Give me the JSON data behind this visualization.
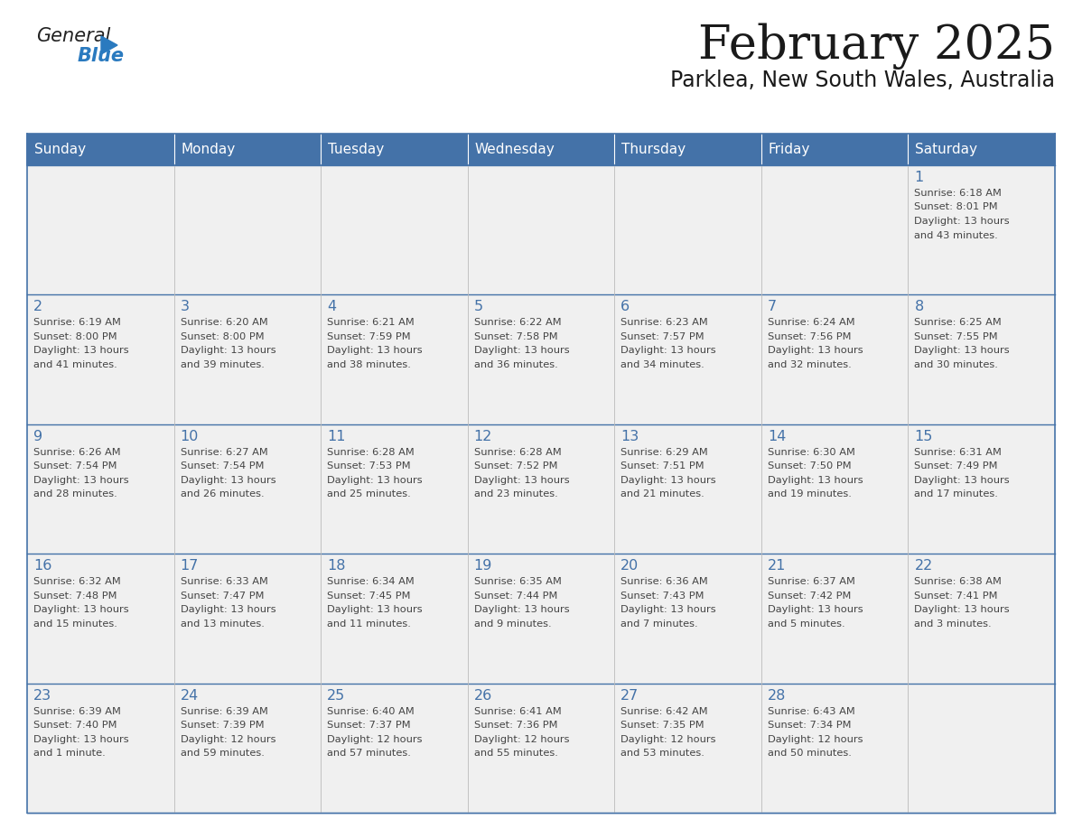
{
  "title": "February 2025",
  "subtitle": "Parklea, New South Wales, Australia",
  "days_of_week": [
    "Sunday",
    "Monday",
    "Tuesday",
    "Wednesday",
    "Thursday",
    "Friday",
    "Saturday"
  ],
  "header_bg": "#4472a8",
  "header_text": "#ffffff",
  "cell_bg": "#f0f0f0",
  "border_color": "#4472a8",
  "day_number_color": "#4472a8",
  "text_color": "#444444",
  "title_color": "#1a1a1a",
  "logo_general_color": "#222222",
  "logo_blue_color": "#2a7abf",
  "weeks": [
    [
      {
        "day": null,
        "info": null
      },
      {
        "day": null,
        "info": null
      },
      {
        "day": null,
        "info": null
      },
      {
        "day": null,
        "info": null
      },
      {
        "day": null,
        "info": null
      },
      {
        "day": null,
        "info": null
      },
      {
        "day": 1,
        "info": "Sunrise: 6:18 AM\nSunset: 8:01 PM\nDaylight: 13 hours\nand 43 minutes."
      }
    ],
    [
      {
        "day": 2,
        "info": "Sunrise: 6:19 AM\nSunset: 8:00 PM\nDaylight: 13 hours\nand 41 minutes."
      },
      {
        "day": 3,
        "info": "Sunrise: 6:20 AM\nSunset: 8:00 PM\nDaylight: 13 hours\nand 39 minutes."
      },
      {
        "day": 4,
        "info": "Sunrise: 6:21 AM\nSunset: 7:59 PM\nDaylight: 13 hours\nand 38 minutes."
      },
      {
        "day": 5,
        "info": "Sunrise: 6:22 AM\nSunset: 7:58 PM\nDaylight: 13 hours\nand 36 minutes."
      },
      {
        "day": 6,
        "info": "Sunrise: 6:23 AM\nSunset: 7:57 PM\nDaylight: 13 hours\nand 34 minutes."
      },
      {
        "day": 7,
        "info": "Sunrise: 6:24 AM\nSunset: 7:56 PM\nDaylight: 13 hours\nand 32 minutes."
      },
      {
        "day": 8,
        "info": "Sunrise: 6:25 AM\nSunset: 7:55 PM\nDaylight: 13 hours\nand 30 minutes."
      }
    ],
    [
      {
        "day": 9,
        "info": "Sunrise: 6:26 AM\nSunset: 7:54 PM\nDaylight: 13 hours\nand 28 minutes."
      },
      {
        "day": 10,
        "info": "Sunrise: 6:27 AM\nSunset: 7:54 PM\nDaylight: 13 hours\nand 26 minutes."
      },
      {
        "day": 11,
        "info": "Sunrise: 6:28 AM\nSunset: 7:53 PM\nDaylight: 13 hours\nand 25 minutes."
      },
      {
        "day": 12,
        "info": "Sunrise: 6:28 AM\nSunset: 7:52 PM\nDaylight: 13 hours\nand 23 minutes."
      },
      {
        "day": 13,
        "info": "Sunrise: 6:29 AM\nSunset: 7:51 PM\nDaylight: 13 hours\nand 21 minutes."
      },
      {
        "day": 14,
        "info": "Sunrise: 6:30 AM\nSunset: 7:50 PM\nDaylight: 13 hours\nand 19 minutes."
      },
      {
        "day": 15,
        "info": "Sunrise: 6:31 AM\nSunset: 7:49 PM\nDaylight: 13 hours\nand 17 minutes."
      }
    ],
    [
      {
        "day": 16,
        "info": "Sunrise: 6:32 AM\nSunset: 7:48 PM\nDaylight: 13 hours\nand 15 minutes."
      },
      {
        "day": 17,
        "info": "Sunrise: 6:33 AM\nSunset: 7:47 PM\nDaylight: 13 hours\nand 13 minutes."
      },
      {
        "day": 18,
        "info": "Sunrise: 6:34 AM\nSunset: 7:45 PM\nDaylight: 13 hours\nand 11 minutes."
      },
      {
        "day": 19,
        "info": "Sunrise: 6:35 AM\nSunset: 7:44 PM\nDaylight: 13 hours\nand 9 minutes."
      },
      {
        "day": 20,
        "info": "Sunrise: 6:36 AM\nSunset: 7:43 PM\nDaylight: 13 hours\nand 7 minutes."
      },
      {
        "day": 21,
        "info": "Sunrise: 6:37 AM\nSunset: 7:42 PM\nDaylight: 13 hours\nand 5 minutes."
      },
      {
        "day": 22,
        "info": "Sunrise: 6:38 AM\nSunset: 7:41 PM\nDaylight: 13 hours\nand 3 minutes."
      }
    ],
    [
      {
        "day": 23,
        "info": "Sunrise: 6:39 AM\nSunset: 7:40 PM\nDaylight: 13 hours\nand 1 minute."
      },
      {
        "day": 24,
        "info": "Sunrise: 6:39 AM\nSunset: 7:39 PM\nDaylight: 12 hours\nand 59 minutes."
      },
      {
        "day": 25,
        "info": "Sunrise: 6:40 AM\nSunset: 7:37 PM\nDaylight: 12 hours\nand 57 minutes."
      },
      {
        "day": 26,
        "info": "Sunrise: 6:41 AM\nSunset: 7:36 PM\nDaylight: 12 hours\nand 55 minutes."
      },
      {
        "day": 27,
        "info": "Sunrise: 6:42 AM\nSunset: 7:35 PM\nDaylight: 12 hours\nand 53 minutes."
      },
      {
        "day": 28,
        "info": "Sunrise: 6:43 AM\nSunset: 7:34 PM\nDaylight: 12 hours\nand 50 minutes."
      },
      {
        "day": null,
        "info": null
      }
    ]
  ]
}
